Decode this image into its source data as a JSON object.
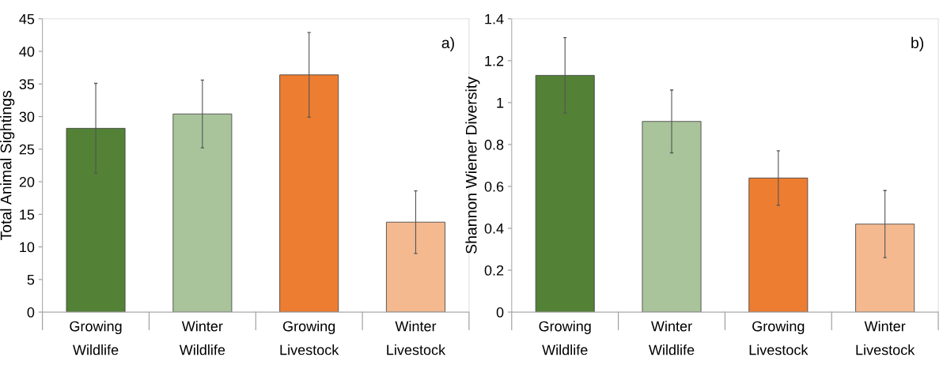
{
  "chart_data": [
    {
      "type": "bar",
      "ylabel": "Total Animal Sightings",
      "annotations": [
        "a)"
      ],
      "categories": [
        "Growing\nWildlife",
        "Winter\nWildlife",
        "Growing\nLivestock",
        "Winter\nLivestock"
      ],
      "values": [
        28.2,
        30.4,
        36.4,
        13.8
      ],
      "errors": [
        [
          21.3,
          35.1
        ],
        [
          25.2,
          35.6
        ],
        [
          29.9,
          42.9
        ],
        [
          9.0,
          18.6
        ]
      ],
      "colors": [
        "#538135",
        "#a9c49a",
        "#ed7d31",
        "#f4b98f"
      ],
      "ylim": [
        0,
        45
      ],
      "yticks": [
        0,
        5,
        10,
        15,
        20,
        25,
        30,
        35,
        40,
        45
      ],
      "grid": false
    },
    {
      "type": "bar",
      "ylabel": "Shannon Wiener Diversity",
      "annotations": [
        "b)"
      ],
      "categories": [
        "Growing\nWildlife",
        "Winter\nWildlife",
        "Growing\nLivestock",
        "Winter\nLivestock"
      ],
      "values": [
        1.13,
        0.91,
        0.64,
        0.42
      ],
      "errors": [
        [
          0.95,
          1.31
        ],
        [
          0.76,
          1.06
        ],
        [
          0.51,
          0.77
        ],
        [
          0.26,
          0.58
        ]
      ],
      "colors": [
        "#538135",
        "#a9c49a",
        "#ed7d31",
        "#f4b98f"
      ],
      "ylim": [
        0,
        1.4
      ],
      "yticks": [
        0,
        0.2,
        0.4,
        0.6,
        0.8,
        1,
        1.2,
        1.4
      ],
      "grid": false
    }
  ]
}
